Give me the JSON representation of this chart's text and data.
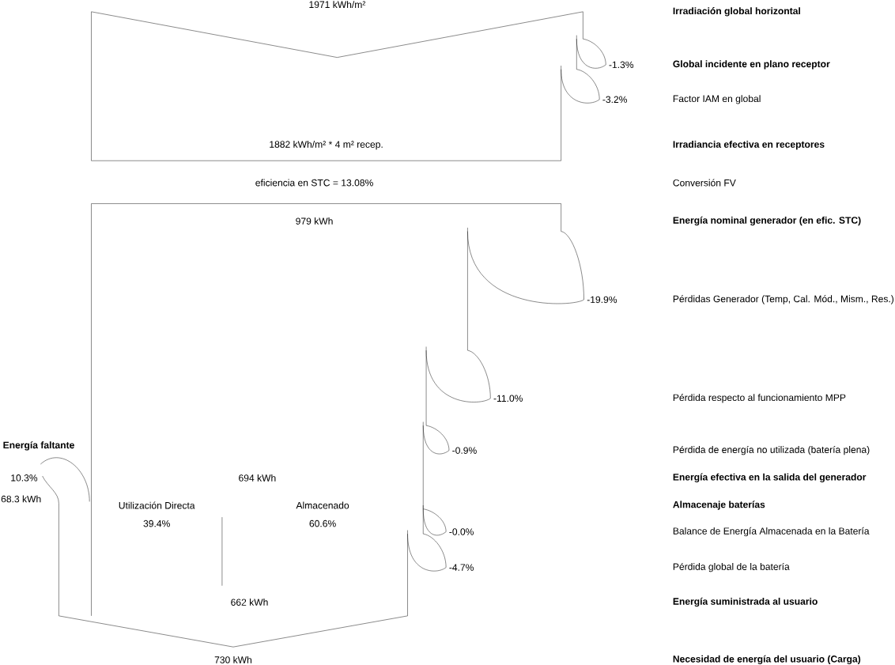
{
  "chart_data": {
    "type": "other",
    "categories": [
      "**Irradiación global horizontal**",
      "**Global incidente en plano receptor**",
      "Factor IAM en global",
      "**Irradiancia efectiva en receptores**",
      "Conversión FV",
      "**Energía nominal generador (en efic. STC)**",
      "Pérdidas Generador (Temp, Cal. Mód., Mism., Res.)",
      "Pérdida respecto al funcionamiento MPP",
      "Pérdida de energía no utilizada (batería plena)",
      "**Energía efectiva en la salida del generador**",
      "**Almacenaje baterías**",
      "Balance de Energía Almacenada en la Batería",
      "Pérdida global de la batería",
      "**Energía suministrada al usuario**",
      "**Necesidad de energía del usuario (Carga)**"
    ],
    "values": [
      1971,
      -1.3,
      -3.2,
      1882,
      13.08,
      979,
      -19.9,
      -11.0,
      -0.9,
      694,
      null,
      -0.0,
      -4.7,
      662,
      730
    ],
    "value_labels": [
      "1971 kWh/m²",
      "-1.3%",
      "-3.2%",
      "1882 kWh/m² * 4 m² recep.",
      "eficiencia en STC = 13.08%",
      "979 kWh",
      "-19.9%",
      "-11.0%",
      "-0.9%",
      "694 kWh",
      null,
      "-0.0%",
      "-4.7%",
      "662 kWh",
      "730 kWh"
    ],
    "annotations": [
      "**Energía faltante**",
      "10.3%",
      "68.3 kWh",
      "Utilización Directa",
      "39.4%",
      "Almacenado",
      "60.6%"
    ]
  }
}
